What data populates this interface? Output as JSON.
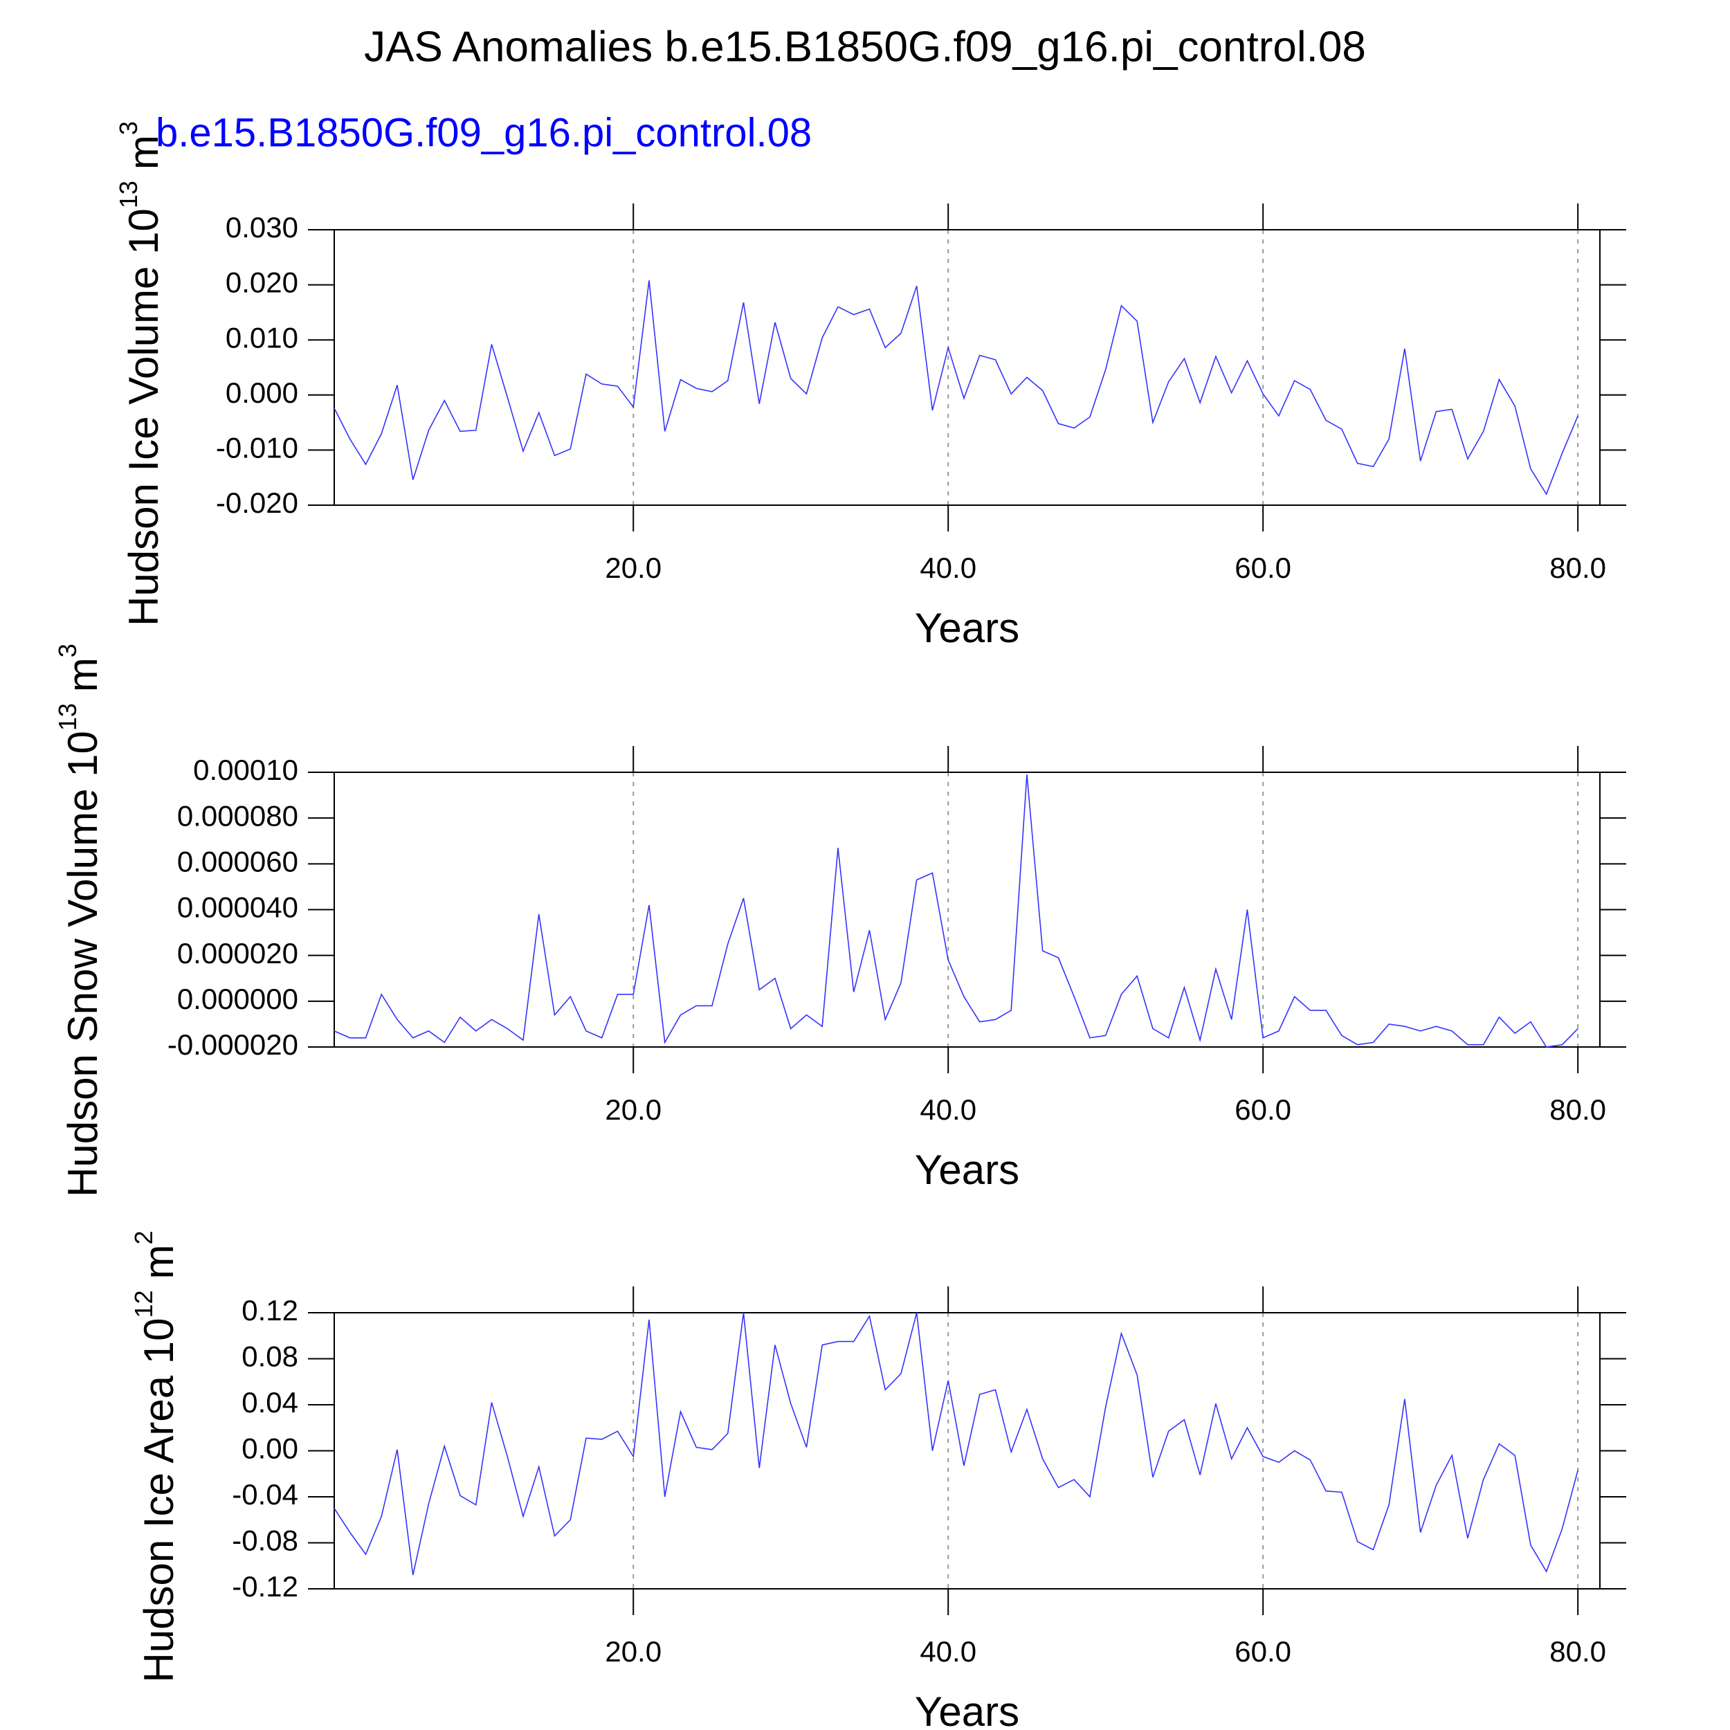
{
  "title": "JAS Anomalies b.e15.B1850G.f09_g16.pi_control.08",
  "subtitle": "b.e15.B1850G.f09_g16.pi_control.08",
  "chart_data": [
    {
      "type": "line",
      "y_label": [
        "Hudson Ice Volume 10",
        "13",
        "m",
        "3"
      ],
      "x_label": "Years",
      "color": "#3333ff",
      "grid": true,
      "xlim": [
        1,
        81.4
      ],
      "xticks": [
        {
          "value": 20,
          "label": "20.0"
        },
        {
          "value": 40,
          "label": "40.0"
        },
        {
          "value": 60,
          "label": "60.0"
        },
        {
          "value": 80,
          "label": "80.0"
        }
      ],
      "ylim": [
        -0.02,
        0.03
      ],
      "yticks": [
        {
          "value": -0.02,
          "label": "-0.020"
        },
        {
          "value": -0.01,
          "label": "-0.010"
        },
        {
          "value": 0,
          "label": "0.000"
        },
        {
          "value": 0.01,
          "label": "0.010"
        },
        {
          "value": 0.02,
          "label": "0.020"
        },
        {
          "value": 0.03,
          "label": "0.030"
        }
      ],
      "x": [
        1,
        2,
        3,
        4,
        5,
        6,
        7,
        8,
        9,
        10,
        11,
        12,
        13,
        14,
        15,
        16,
        17,
        18,
        19,
        20,
        21,
        22,
        23,
        24,
        25,
        26,
        27,
        28,
        29,
        30,
        31,
        32,
        33,
        34,
        35,
        36,
        37,
        38,
        39,
        40,
        41,
        42,
        43,
        44,
        45,
        46,
        47,
        48,
        49,
        50,
        51,
        52,
        53,
        54,
        55,
        56,
        57,
        58,
        59,
        60,
        61,
        62,
        63,
        64,
        65,
        66,
        67,
        68,
        69,
        70,
        71,
        72,
        73,
        74,
        75,
        76,
        77,
        78,
        79,
        80
      ],
      "values": [
        -0.0024,
        -0.008,
        -0.0126,
        -0.007,
        0.0018,
        -0.0154,
        -0.0064,
        -0.001,
        -0.0066,
        -0.0064,
        0.0092,
        -0.0004,
        -0.0102,
        -0.0032,
        -0.011,
        -0.0098,
        0.0038,
        0.002,
        0.0016,
        -0.0022,
        0.0208,
        -0.0066,
        0.0028,
        0.0012,
        0.0006,
        0.0026,
        0.0168,
        -0.0016,
        0.0132,
        0.003,
        0.0002,
        0.0104,
        0.016,
        0.0146,
        0.0156,
        0.0086,
        0.0112,
        0.0198,
        -0.0028,
        0.0086,
        -0.0006,
        0.0072,
        0.0064,
        0.0002,
        0.0032,
        0.0008,
        -0.0052,
        -0.006,
        -0.004,
        0.0046,
        0.0162,
        0.0134,
        -0.005,
        0.0024,
        0.0066,
        -0.0014,
        0.007,
        0.0004,
        0.0062,
        0.0002,
        -0.0038,
        0.0026,
        0.001,
        -0.0046,
        -0.0062,
        -0.0124,
        -0.013,
        -0.008,
        0.0084,
        -0.012,
        -0.003,
        -0.0026,
        -0.0116,
        -0.0066,
        0.0028,
        -0.002,
        -0.0134,
        -0.018,
        -0.0106,
        -0.0038
      ]
    },
    {
      "type": "line",
      "y_label": [
        "Hudson Snow Volume 10",
        "13",
        "m",
        "3"
      ],
      "x_label": "Years",
      "color": "#3333ff",
      "grid": true,
      "xlim": [
        1,
        81.4
      ],
      "xticks": [
        {
          "value": 20,
          "label": "20.0"
        },
        {
          "value": 40,
          "label": "40.0"
        },
        {
          "value": 60,
          "label": "60.0"
        },
        {
          "value": 80,
          "label": "80.0"
        }
      ],
      "ylim": [
        -2e-05,
        0.0001
      ],
      "yticks": [
        {
          "value": -2e-05,
          "label": "-0.000020"
        },
        {
          "value": 0,
          "label": "0.000000"
        },
        {
          "value": 2e-05,
          "label": "0.000020"
        },
        {
          "value": 4e-05,
          "label": "0.000040"
        },
        {
          "value": 6e-05,
          "label": "0.000060"
        },
        {
          "value": 8e-05,
          "label": "0.000080"
        },
        {
          "value": 0.0001,
          "label": "0.00010"
        }
      ],
      "x": [
        1,
        2,
        3,
        4,
        5,
        6,
        7,
        8,
        9,
        10,
        11,
        12,
        13,
        14,
        15,
        16,
        17,
        18,
        19,
        20,
        21,
        22,
        23,
        24,
        25,
        26,
        27,
        28,
        29,
        30,
        31,
        32,
        33,
        34,
        35,
        36,
        37,
        38,
        39,
        40,
        41,
        42,
        43,
        44,
        45,
        46,
        47,
        48,
        49,
        50,
        51,
        52,
        53,
        54,
        55,
        56,
        57,
        58,
        59,
        60,
        61,
        62,
        63,
        64,
        65,
        66,
        67,
        68,
        69,
        70,
        71,
        72,
        73,
        74,
        75,
        76,
        77,
        78,
        79,
        80
      ],
      "values": [
        -1.3e-05,
        -1.6e-05,
        -1.6e-05,
        3e-06,
        -8e-06,
        -1.6e-05,
        -1.3e-05,
        -1.8e-05,
        -7e-06,
        -1.3e-05,
        -8e-06,
        -1.2e-05,
        -1.7e-05,
        3.8e-05,
        -6e-06,
        2e-06,
        -1.3e-05,
        -1.6e-05,
        3e-06,
        3e-06,
        4.2e-05,
        -1.8e-05,
        -6e-06,
        -2e-06,
        -2e-06,
        2.5e-05,
        4.5e-05,
        5e-06,
        1e-05,
        -1.2e-05,
        -6e-06,
        -1.1e-05,
        6.7e-05,
        4e-06,
        3.1e-05,
        -8e-06,
        8e-06,
        5.3e-05,
        5.6e-05,
        1.8e-05,
        2e-06,
        -9e-06,
        -8e-06,
        -4e-06,
        9.9e-05,
        2.2e-05,
        1.9e-05,
        2e-06,
        -1.6e-05,
        -1.5e-05,
        3e-06,
        1.1e-05,
        -1.2e-05,
        -1.6e-05,
        6e-06,
        -1.7e-05,
        1.4e-05,
        -8e-06,
        4e-05,
        -1.6e-05,
        -1.3e-05,
        2e-06,
        -4e-06,
        -4e-06,
        -1.5e-05,
        -1.9e-05,
        -1.8e-05,
        -1e-05,
        -1.1e-05,
        -1.3e-05,
        -1.1e-05,
        -1.3e-05,
        -1.9e-05,
        -1.9e-05,
        -7e-06,
        -1.4e-05,
        -9e-06,
        -2e-05,
        -1.9e-05,
        -1.2e-05
      ]
    },
    {
      "type": "line",
      "y_label": [
        "Hudson Ice Area 10",
        "12",
        "m",
        "2"
      ],
      "x_label": "Years",
      "color": "#3333ff",
      "grid": true,
      "xlim": [
        1,
        81.4
      ],
      "xticks": [
        {
          "value": 20,
          "label": "20.0"
        },
        {
          "value": 40,
          "label": "40.0"
        },
        {
          "value": 60,
          "label": "60.0"
        },
        {
          "value": 80,
          "label": "80.0"
        }
      ],
      "ylim": [
        -0.12,
        0.12
      ],
      "yticks": [
        -0.12,
        -0.08,
        -0.04,
        {
          "value": 0,
          "label": "0.00"
        },
        0.04,
        0.08,
        0.12
      ],
      "x": [
        1,
        2,
        3,
        4,
        5,
        6,
        7,
        8,
        9,
        10,
        11,
        12,
        13,
        14,
        15,
        16,
        17,
        18,
        19,
        20,
        21,
        22,
        23,
        24,
        25,
        26,
        27,
        28,
        29,
        30,
        31,
        32,
        33,
        34,
        35,
        36,
        37,
        38,
        39,
        40,
        41,
        42,
        43,
        44,
        45,
        46,
        47,
        48,
        49,
        50,
        51,
        52,
        53,
        54,
        55,
        56,
        57,
        58,
        59,
        60,
        61,
        62,
        63,
        64,
        65,
        66,
        67,
        68,
        69,
        70,
        71,
        72,
        73,
        74,
        75,
        76,
        77,
        78,
        79,
        80
      ],
      "values": [
        -0.05,
        -0.071,
        -0.09,
        -0.057,
        0.001,
        -0.108,
        -0.046,
        0.004,
        -0.039,
        -0.047,
        0.042,
        -0.005,
        -0.057,
        -0.014,
        -0.074,
        -0.06,
        0.011,
        0.01,
        0.017,
        -0.005,
        0.114,
        -0.04,
        0.034,
        0.003,
        0.001,
        0.015,
        0.12,
        -0.015,
        0.092,
        0.041,
        0.003,
        0.092,
        0.095,
        0.095,
        0.117,
        0.053,
        0.067,
        0.12,
        0,
        0.061,
        -0.013,
        0.049,
        0.053,
        -0.001,
        0.036,
        -0.007,
        -0.032,
        -0.025,
        -0.04,
        0.038,
        0.102,
        0.066,
        -0.023,
        0.017,
        0.027,
        -0.021,
        0.041,
        -0.007,
        0.02,
        -0.005,
        -0.01,
        0,
        -0.008,
        -0.035,
        -0.036,
        -0.079,
        -0.086,
        -0.047,
        0.045,
        -0.071,
        -0.03,
        -0.004,
        -0.076,
        -0.025,
        0.006,
        -0.004,
        -0.082,
        -0.105,
        -0.068,
        -0.017
      ]
    }
  ]
}
